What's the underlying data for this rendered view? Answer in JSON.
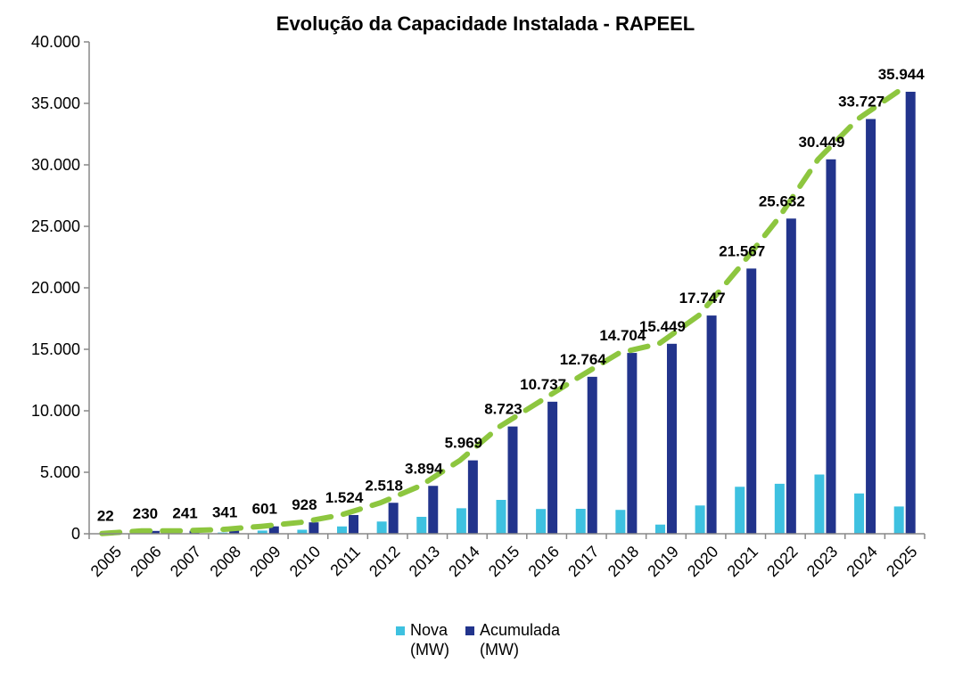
{
  "chart_data": {
    "type": "bar",
    "title": "Evolução da Capacidade Instalada - RAPEEL",
    "xlabel": "",
    "ylabel": "",
    "ylim": [
      0,
      40000
    ],
    "yticks": [
      0,
      5000,
      10000,
      15000,
      20000,
      25000,
      30000,
      35000,
      40000
    ],
    "ytick_labels": [
      "0",
      "5.000",
      "10.000",
      "15.000",
      "20.000",
      "25.000",
      "30.000",
      "35.000",
      "40.000"
    ],
    "categories": [
      "2005",
      "2006",
      "2007",
      "2008",
      "2009",
      "2010",
      "2011",
      "2012",
      "2013",
      "2014",
      "2015",
      "2016",
      "2017",
      "2018",
      "2019",
      "2020",
      "2021",
      "2022",
      "2023",
      "2024",
      "2025"
    ],
    "series": [
      {
        "name": "Nova (MW)",
        "color": "#3ec1e0",
        "values": [
          22,
          208,
          11,
          100,
          260,
          327,
          596,
          994,
          1376,
          2075,
          2754,
          2014,
          2027,
          1940,
          745,
          2298,
          3820,
          4065,
          4817,
          3278,
          2217
        ]
      },
      {
        "name": "Acumulada (MW)",
        "color": "#22348c",
        "values": [
          22,
          230,
          241,
          341,
          601,
          928,
          1524,
          2518,
          3894,
          5969,
          8723,
          10737,
          12764,
          14704,
          15449,
          17747,
          21567,
          25632,
          30449,
          33727,
          35944
        ],
        "data_labels": [
          "22",
          "230",
          "241",
          "341",
          "601",
          "928",
          "1.524",
          "2.518",
          "3.894",
          "5.969",
          "8.723",
          "10.737",
          "12.764",
          "14.704",
          "15.449",
          "17.747",
          "21.567",
          "25.632",
          "30.449",
          "33.727",
          "35.944"
        ]
      }
    ],
    "trend_line": {
      "style": "dashed",
      "color": "#8dc63f",
      "follows": "Acumulada (MW)"
    },
    "legend": {
      "position": "bottom-center",
      "entries": [
        {
          "label": "Nova\n(MW)",
          "color": "#3ec1e0"
        },
        {
          "label": "Acumulada\n(MW)",
          "color": "#22348c"
        }
      ]
    },
    "grid": false
  }
}
